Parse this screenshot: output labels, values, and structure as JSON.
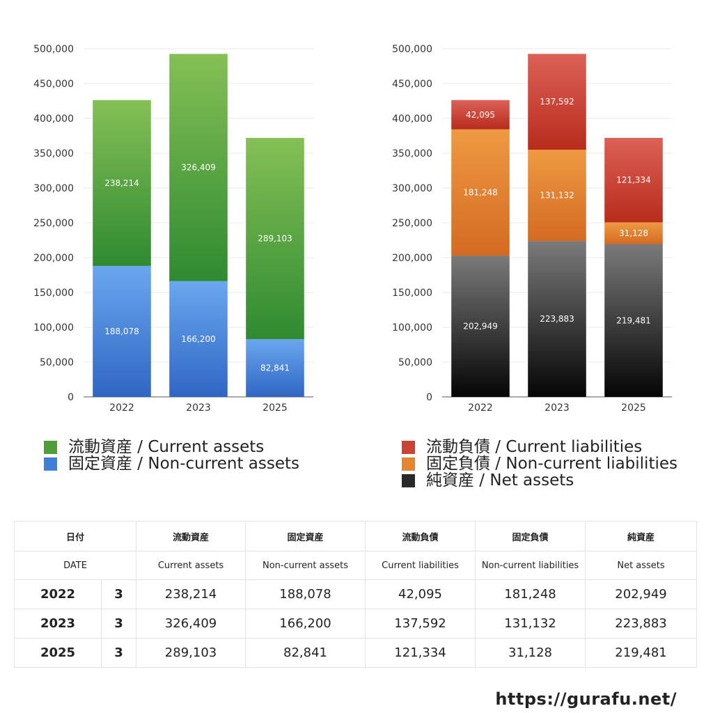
{
  "chart_data": [
    {
      "type": "bar",
      "stacked": true,
      "categories": [
        "2022",
        "2023",
        "2025"
      ],
      "series": [
        {
          "name": "固定資産 / Non-current assets",
          "values": [
            188078,
            166200,
            82841
          ],
          "color_top": "#6aa7ef",
          "color_bottom": "#2f66c4"
        },
        {
          "name": "流動資産 / Current assets",
          "values": [
            238214,
            326409,
            289103
          ],
          "color_top": "#85c056",
          "color_bottom": "#2f8a31"
        }
      ],
      "yticks": [
        "0",
        "50,000",
        "100,000",
        "150,000",
        "200,000",
        "250,000",
        "300,000",
        "350,000",
        "400,000",
        "450,000",
        "500,000"
      ],
      "ylim": [
        0,
        500000
      ],
      "grid": true
    },
    {
      "type": "bar",
      "stacked": true,
      "categories": [
        "2022",
        "2023",
        "2025"
      ],
      "series": [
        {
          "name": "純資産 / Net assets",
          "values": [
            202949,
            223883,
            219481
          ],
          "color_top": "#7a7a7a",
          "color_bottom": "#050505"
        },
        {
          "name": "固定負債 / Non-current liabilities",
          "values": [
            181248,
            131132,
            31128
          ],
          "color_top": "#ee9a42",
          "color_bottom": "#d46a22"
        },
        {
          "name": "流動負債 / Current liabilities",
          "values": [
            42095,
            137592,
            121334
          ],
          "color_top": "#dc6156",
          "color_bottom": "#b82c1c"
        }
      ],
      "yticks": [
        "0",
        "50,000",
        "100,000",
        "150,000",
        "200,000",
        "250,000",
        "300,000",
        "350,000",
        "400,000",
        "450,000",
        "500,000"
      ],
      "ylim": [
        0,
        500000
      ],
      "grid": true
    }
  ],
  "legend_left": [
    {
      "label": "流動資産 / Current assets",
      "color": "#4f9e3a"
    },
    {
      "label": "固定資産 / Non-current assets",
      "color": "#3f7fdb"
    }
  ],
  "legend_right": [
    {
      "label": "流動負債 / Current liabilities",
      "color": "#cc4234"
    },
    {
      "label": "固定負債 / Non-current liabilities",
      "color": "#e4852f"
    },
    {
      "label": "純資産 / Net assets",
      "color": "#2a2a2a"
    }
  ],
  "table": {
    "header_jp": [
      "日付",
      "流動資産",
      "固定資産",
      "流動負債",
      "固定負債",
      "純資産"
    ],
    "header_en": [
      "DATE",
      "Current assets",
      "Non-current assets",
      "Current liabilities",
      "Non-current liabilities",
      "Net assets"
    ],
    "rows": [
      {
        "year": "2022",
        "month": "3",
        "values": [
          "238,214",
          "188,078",
          "42,095",
          "181,248",
          "202,949"
        ]
      },
      {
        "year": "2023",
        "month": "3",
        "values": [
          "326,409",
          "166,200",
          "137,592",
          "131,132",
          "223,883"
        ]
      },
      {
        "year": "2025",
        "month": "3",
        "values": [
          "289,103",
          "82,841",
          "121,334",
          "31,128",
          "219,481"
        ]
      }
    ]
  },
  "footer": "https://gurafu.net/"
}
